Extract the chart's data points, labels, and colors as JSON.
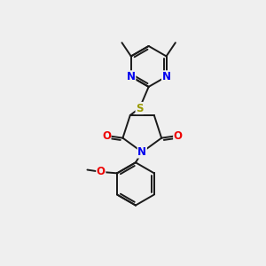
{
  "background_color": "#efefef",
  "bond_color": "#1a1a1a",
  "atom_colors": {
    "N": "#0000ee",
    "O": "#ee0000",
    "S": "#999900",
    "C": "#1a1a1a"
  },
  "bond_lw": 1.4,
  "font_size_atom": 8.5
}
